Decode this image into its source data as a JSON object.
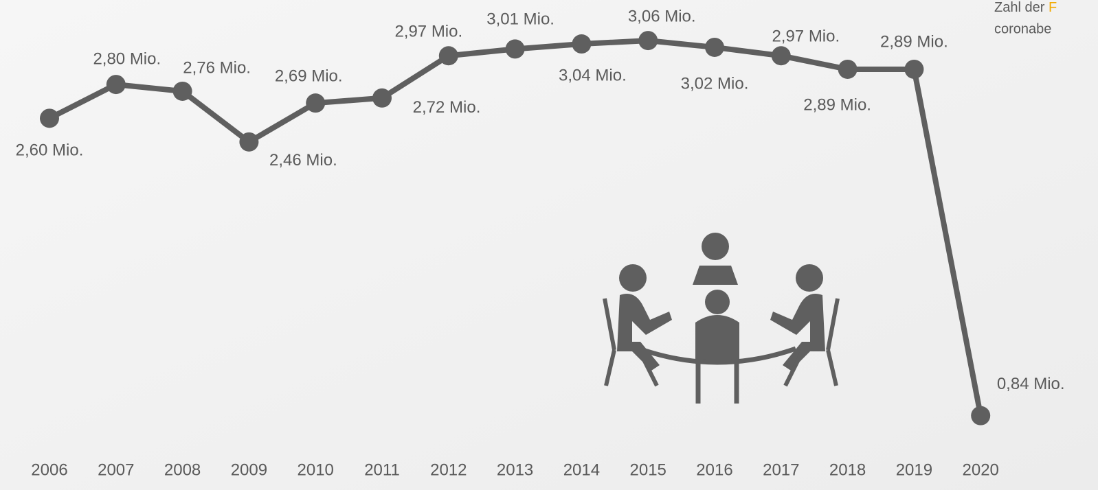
{
  "chart_data": {
    "type": "line",
    "categories": [
      "2006",
      "2007",
      "2008",
      "2009",
      "2010",
      "2011",
      "2012",
      "2013",
      "2014",
      "2015",
      "2016",
      "2017",
      "2018",
      "2019",
      "2020"
    ],
    "series": [
      {
        "color": "#5f5f5f",
        "values": [
          2.6,
          2.8,
          2.76,
          2.46,
          2.69,
          2.72,
          2.97,
          3.01,
          3.04,
          3.06,
          3.02,
          2.97,
          2.89,
          2.89,
          0.84
        ],
        "value_labels": [
          "2,60 Mio.",
          "2,80 Mio.",
          "2,76 Mio.",
          "2,46 Mio.",
          "2,69 Mio.",
          "2,72 Mio.",
          "2,97 Mio.",
          "3,01 Mio.",
          "3,04 Mio.",
          "3,06 Mio.",
          "3,02 Mio.",
          "2,97 Mio.",
          "2,89 Mio.",
          "2,89 Mio.",
          "0,84 Mio."
        ]
      }
    ],
    "ylim": [
      0.4,
      3.3
    ],
    "note": {
      "line1": "Zahl der ",
      "highlight": "F",
      "line2": "coronabe"
    }
  }
}
